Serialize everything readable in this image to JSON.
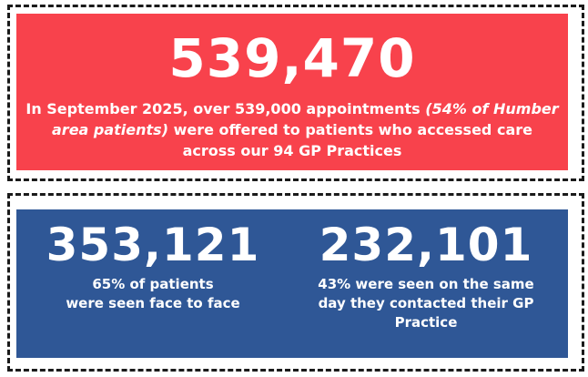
{
  "headline": {
    "number": "539,470",
    "desc_pre": "In September 2025, over 539,000 appointments ",
    "desc_italic": "(54% of Humber area patients)",
    "desc_post": " were offered to patients who accessed care across our 94 GP Practices"
  },
  "stats": [
    {
      "number": "353,121",
      "desc_line1": "65% of patients",
      "desc_line2": "were seen face to face"
    },
    {
      "number": "232,101",
      "desc_line1": "43% were seen on the same",
      "desc_line2": "day they contacted their GP",
      "desc_line3": "Practice"
    }
  ],
  "colors": {
    "red_panel": "#f8424c",
    "blue_panel": "#2f5796",
    "text": "#ffffff",
    "dash_border": "#1a1a1a"
  }
}
